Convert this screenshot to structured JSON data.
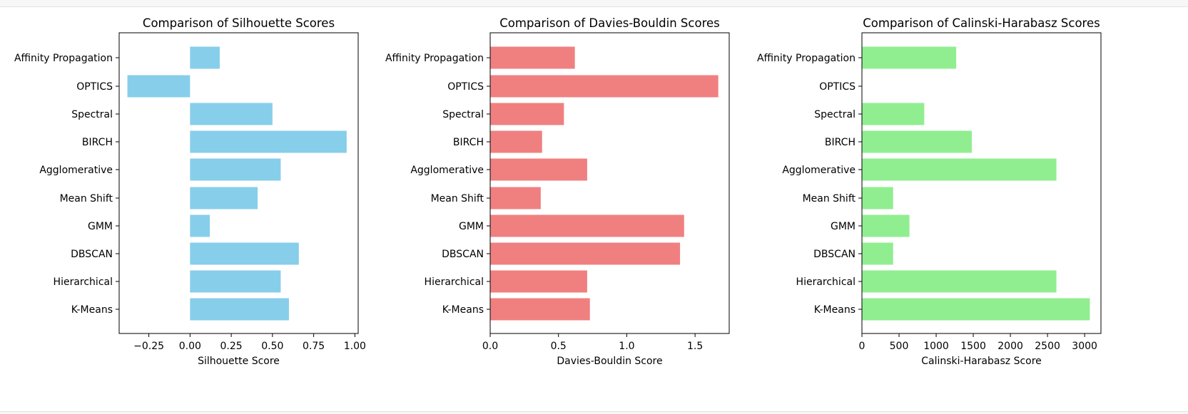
{
  "chart_data": [
    {
      "type": "bar",
      "orientation": "horizontal",
      "title": "Comparison of Silhouette Scores",
      "xlabel": "Silhouette Score",
      "color": "#87ceeb",
      "xlim": [
        -0.43,
        1.02
      ],
      "xticks": [
        -0.25,
        0.0,
        0.25,
        0.5,
        0.75,
        1.0
      ],
      "xtick_labels": [
        "−0.25",
        "0.00",
        "0.25",
        "0.50",
        "0.75",
        "1.00"
      ],
      "categories": [
        "K-Means",
        "Hierarchical",
        "DBSCAN",
        "GMM",
        "Mean Shift",
        "Agglomerative",
        "BIRCH",
        "Spectral",
        "OPTICS",
        "Affinity Propagation"
      ],
      "values": [
        0.6,
        0.55,
        0.66,
        0.12,
        0.41,
        0.55,
        0.95,
        0.5,
        -0.38,
        0.18
      ]
    },
    {
      "type": "bar",
      "orientation": "horizontal",
      "title": "Comparison of Davies-Bouldin Scores",
      "xlabel": "Davies-Bouldin Score",
      "color": "#f08080",
      "xlim": [
        0,
        1.75
      ],
      "xticks": [
        0.0,
        0.5,
        1.0,
        1.5
      ],
      "xtick_labels": [
        "0.0",
        "0.5",
        "1.0",
        "1.5"
      ],
      "categories": [
        "K-Means",
        "Hierarchical",
        "DBSCAN",
        "GMM",
        "Mean Shift",
        "Agglomerative",
        "BIRCH",
        "Spectral",
        "OPTICS",
        "Affinity Propagation"
      ],
      "values": [
        0.73,
        0.71,
        1.39,
        1.42,
        0.37,
        0.71,
        0.38,
        0.54,
        1.67,
        0.62
      ]
    },
    {
      "type": "bar",
      "orientation": "horizontal",
      "title": "Comparison of Calinski-Harabasz Scores",
      "xlabel": "Calinski-Harabasz Score",
      "color": "#90ee90",
      "xlim": [
        0,
        3220
      ],
      "xticks": [
        0,
        500,
        1000,
        1500,
        2000,
        2500,
        3000
      ],
      "xtick_labels": [
        "0",
        "500",
        "1000",
        "1500",
        "2000",
        "2500",
        "3000"
      ],
      "categories": [
        "K-Means",
        "Hierarchical",
        "DBSCAN",
        "GMM",
        "Mean Shift",
        "Agglomerative",
        "BIRCH",
        "Spectral",
        "OPTICS",
        "Affinity Propagation"
      ],
      "values": [
        3070,
        2620,
        420,
        640,
        420,
        2620,
        1480,
        840,
        0,
        1270
      ]
    }
  ]
}
